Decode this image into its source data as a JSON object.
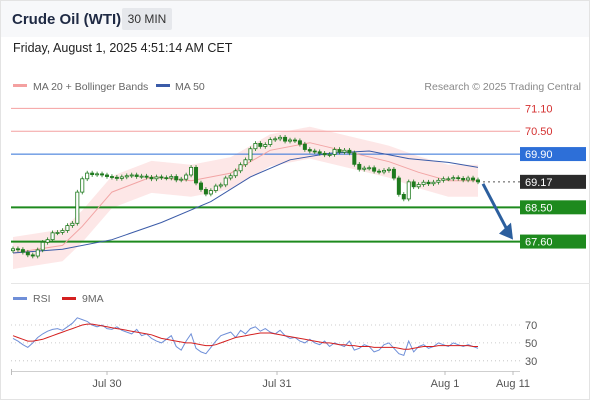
{
  "header": {
    "title": "Crude Oil (WTI)",
    "timeframe": "30 MIN"
  },
  "timestamp": "Friday, August 1, 2025 4:51:14 AM CET",
  "legend": {
    "ma20": "MA 20 + Bollinger Bands",
    "ma50": "MA 50",
    "credit": "Research © 2025 Trading Central",
    "rsi": "RSI",
    "rsi_ma": "9MA"
  },
  "colors": {
    "resistance": "#f4a0a0",
    "support": "#1e8a1e",
    "pivot": "#2d6fd8",
    "ma50": "#3b5ba8",
    "ma20": "#f2a5a5",
    "band_fill": "#fde3e3",
    "candle": "#1e7a1e",
    "arrow": "#2c5f9e",
    "rsi": "#6f8fd8",
    "rsi_ma": "#d42020"
  },
  "chart_data": {
    "type": "candlestick",
    "x_ticks": [
      "Jul 30",
      "Jul 31",
      "Aug 1",
      "Aug 11"
    ],
    "y_ticks": [
      "71.10",
      "70.50",
      "69.90",
      "69.17",
      "68.50",
      "67.60"
    ],
    "ylim": [
      66.8,
      71.4
    ],
    "levels": [
      {
        "label": "71.10",
        "value": 71.1,
        "kind": "resistance"
      },
      {
        "label": "70.50",
        "value": 70.5,
        "kind": "resistance"
      },
      {
        "label": "69.90",
        "value": 69.9,
        "kind": "pivot"
      },
      {
        "label": "69.17",
        "value": 69.17,
        "kind": "last"
      },
      {
        "label": "68.50",
        "value": 68.5,
        "kind": "support"
      },
      {
        "label": "67.60",
        "value": 67.6,
        "kind": "support"
      }
    ],
    "last_price": 69.17,
    "closes": [
      67.41,
      67.39,
      67.32,
      67.25,
      67.22,
      67.38,
      67.58,
      67.65,
      67.83,
      67.84,
      67.89,
      68.02,
      68.08,
      68.9,
      69.25,
      69.4,
      69.36,
      69.38,
      69.35,
      69.31,
      69.29,
      69.26,
      69.3,
      69.33,
      69.35,
      69.31,
      69.32,
      69.29,
      69.25,
      69.3,
      69.28,
      69.27,
      69.31,
      69.22,
      69.24,
      69.35,
      69.55,
      69.14,
      68.97,
      68.85,
      68.94,
      69.06,
      69.09,
      69.27,
      69.33,
      69.46,
      69.62,
      69.75,
      70.04,
      70.18,
      70.1,
      70.15,
      70.28,
      70.3,
      70.34,
      70.24,
      70.27,
      70.25,
      70.16,
      70.02,
      69.98,
      69.96,
      69.92,
      69.88,
      69.89,
      70.02,
      69.95,
      70.0,
      69.93,
      69.63,
      69.5,
      69.53,
      69.54,
      69.45,
      69.43,
      69.47,
      69.5,
      69.27,
      68.84,
      68.72,
      69.17,
      69.04,
      69.1,
      69.16,
      69.12,
      69.16,
      69.21,
      69.25,
      69.25,
      69.28,
      69.26,
      69.22,
      69.27,
      69.22,
      69.17
    ],
    "ma50_points": [
      [
        0,
        67.3
      ],
      [
        10,
        67.4
      ],
      [
        20,
        67.65
      ],
      [
        30,
        68.1
      ],
      [
        40,
        68.65
      ],
      [
        48,
        69.3
      ],
      [
        56,
        69.75
      ],
      [
        64,
        69.92
      ],
      [
        72,
        69.98
      ],
      [
        80,
        69.78
      ],
      [
        88,
        69.68
      ],
      [
        94,
        69.55
      ]
    ],
    "ma20_points": [
      [
        0,
        67.3
      ],
      [
        10,
        67.5
      ],
      [
        14,
        68.0
      ],
      [
        20,
        68.9
      ],
      [
        28,
        69.3
      ],
      [
        36,
        69.2
      ],
      [
        44,
        69.4
      ],
      [
        52,
        70.0
      ],
      [
        60,
        70.2
      ],
      [
        68,
        69.95
      ],
      [
        76,
        69.7
      ],
      [
        82,
        69.42
      ],
      [
        88,
        69.2
      ],
      [
        94,
        69.2
      ]
    ],
    "forecast_arrow": {
      "from_index": 94,
      "from": 69.17,
      "to": 67.6
    },
    "rsi": {
      "ylim": [
        22,
        80
      ],
      "ticks": [
        70,
        50,
        30
      ],
      "values": [
        55,
        52,
        48,
        45,
        50,
        56,
        60,
        63,
        65,
        66,
        64,
        68,
        72,
        78,
        76,
        74,
        70,
        68,
        70,
        66,
        65,
        68,
        64,
        62,
        60,
        65,
        58,
        60,
        55,
        52,
        50,
        54,
        58,
        46,
        42,
        52,
        60,
        44,
        40,
        38,
        45,
        52,
        58,
        60,
        62,
        56,
        64,
        60,
        66,
        68,
        63,
        66,
        62,
        60,
        64,
        58,
        55,
        56,
        52,
        50,
        54,
        50,
        48,
        52,
        46,
        50,
        48,
        46,
        52,
        42,
        44,
        48,
        46,
        40,
        42,
        48,
        50,
        44,
        38,
        36,
        52,
        40,
        46,
        48,
        44,
        46,
        50,
        48,
        46,
        50,
        48,
        46,
        48,
        46,
        44
      ],
      "ma9": [
        58,
        56,
        54,
        52,
        52,
        53,
        54,
        56,
        58,
        60,
        62,
        64,
        66,
        68,
        70,
        71,
        71,
        70,
        69,
        68,
        67,
        66,
        65,
        64,
        63,
        62,
        61,
        60,
        59,
        57,
        55,
        54,
        53,
        52,
        51,
        50,
        50,
        49,
        48,
        47,
        47,
        48,
        50,
        52,
        54,
        56,
        57,
        58,
        59,
        60,
        61,
        61,
        61,
        60,
        59,
        58,
        57,
        56,
        55,
        54,
        53,
        52,
        51,
        50,
        50,
        49,
        48,
        48,
        47,
        47,
        46,
        46,
        46,
        45,
        45,
        45,
        45,
        45,
        44,
        43,
        43,
        44,
        45,
        46,
        46,
        46,
        47,
        47,
        47,
        47,
        47,
        47,
        47,
        46,
        46
      ]
    }
  }
}
